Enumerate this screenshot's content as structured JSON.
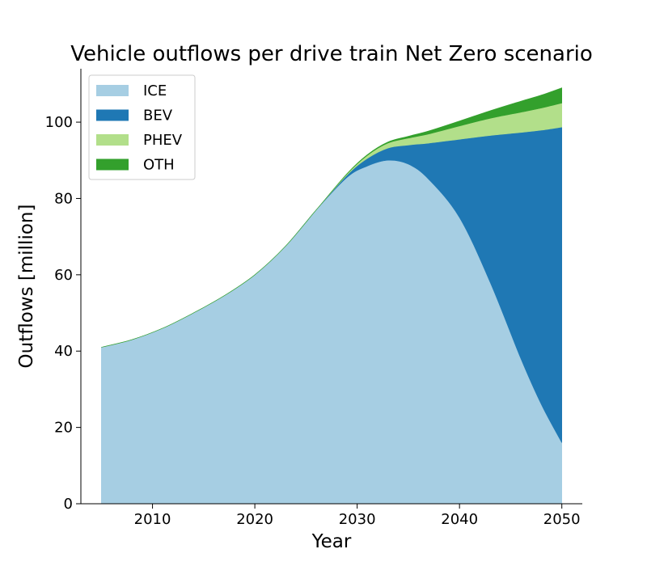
{
  "chart_data": {
    "type": "area",
    "stacked": true,
    "title": "Vehicle outflows per drive train Net Zero scenario",
    "xlabel": "Year",
    "ylabel": "Outflows [million]",
    "xlim": [
      2003,
      2052
    ],
    "ylim": [
      0,
      114
    ],
    "x_ticks": [
      2010,
      2020,
      2030,
      2040,
      2050
    ],
    "y_ticks": [
      0,
      20,
      40,
      60,
      80,
      100
    ],
    "grid": false,
    "legend_position": "top-left",
    "x": [
      2005,
      2008,
      2011,
      2014,
      2017,
      2020,
      2023,
      2026,
      2029,
      2031,
      2033,
      2035,
      2037,
      2040,
      2043,
      2046,
      2048,
      2050
    ],
    "series": [
      {
        "name": "ICE",
        "color": "#a6cee3",
        "values": [
          41.0,
          43.0,
          46.0,
          50.0,
          54.5,
          60.0,
          67.5,
          77.0,
          85.5,
          88.5,
          90.0,
          89.0,
          85.0,
          75.0,
          58.0,
          38.0,
          26.0,
          16.0
        ]
      },
      {
        "name": "BEV",
        "color": "#1f78b4",
        "values": [
          0.0,
          0.0,
          0.0,
          0.0,
          0.0,
          0.0,
          0.0,
          0.0,
          0.6,
          2.0,
          3.2,
          5.0,
          9.5,
          20.5,
          38.5,
          59.3,
          71.9,
          82.7
        ]
      },
      {
        "name": "PHEV",
        "color": "#b2df8a",
        "values": [
          0.0,
          0.0,
          0.0,
          0.0,
          0.0,
          0.0,
          0.0,
          0.0,
          0.3,
          0.8,
          1.3,
          1.8,
          2.4,
          3.5,
          4.5,
          5.3,
          5.8,
          6.3
        ]
      },
      {
        "name": "OTH",
        "color": "#33a02c",
        "values": [
          0.0,
          0.0,
          0.0,
          0.0,
          0.0,
          0.0,
          0.0,
          0.0,
          0.1,
          0.2,
          0.3,
          0.5,
          0.8,
          1.3,
          2.0,
          2.9,
          3.4,
          4.0
        ]
      }
    ]
  }
}
